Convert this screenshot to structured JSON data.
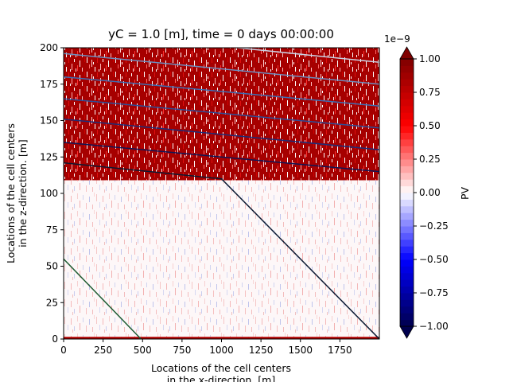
{
  "chart_data": {
    "type": "heatmap",
    "title": "yC = 1.0 [m], time = 0 days 00:00:00",
    "xlabel_lines": [
      "Locations of the cell centers",
      "in the x-direction. [m]"
    ],
    "ylabel_lines": [
      "Locations of the cell centers",
      "in the z-direction. [m]"
    ],
    "xlim": [
      0,
      2000
    ],
    "ylim": [
      0,
      200
    ],
    "xticks": [
      0,
      250,
      500,
      750,
      1000,
      1250,
      1500,
      1750
    ],
    "yticks": [
      0,
      25,
      50,
      75,
      100,
      125,
      150,
      175,
      200
    ],
    "colorbar": {
      "label": "PV",
      "exponent_label": "1e−9",
      "min": -1.0,
      "max": 1.0,
      "ticks": [
        -1.0,
        -0.75,
        -0.5,
        -0.25,
        0.0,
        0.25,
        0.5,
        0.75,
        1.0
      ],
      "tick_labels": [
        "−1.00",
        "−0.75",
        "−0.50",
        "−0.25",
        "0.00",
        "0.25",
        "0.50",
        "0.75",
        "1.00"
      ],
      "colormap": "seismic",
      "extend": "both"
    },
    "field_regions": [
      {
        "z_range": [
          109,
          200
        ],
        "level": "high",
        "value": 0.85,
        "color": "#a80000"
      },
      {
        "z_range": [
          0,
          109
        ],
        "level": "near-zero",
        "value": 0.0,
        "color": "#ffffff"
      }
    ],
    "contours": [
      {
        "color": "#1f5c33",
        "points": [
          [
            0,
            55
          ],
          [
            490,
            0
          ]
        ]
      },
      {
        "color": "#0c1a33",
        "points": [
          [
            0,
            121
          ],
          [
            1000,
            110
          ],
          [
            2000,
            0
          ]
        ]
      },
      {
        "color": "#0e1758",
        "points": [
          [
            0,
            135
          ],
          [
            2000,
            115
          ]
        ]
      },
      {
        "color": "#1b2e7a",
        "points": [
          [
            0,
            151
          ],
          [
            2000,
            130
          ]
        ]
      },
      {
        "color": "#2a4f9a",
        "points": [
          [
            0,
            165
          ],
          [
            2000,
            145
          ]
        ]
      },
      {
        "color": "#3b6fb5",
        "points": [
          [
            0,
            180
          ],
          [
            2000,
            160
          ]
        ]
      },
      {
        "color": "#6b8fc0",
        "points": [
          [
            0,
            196
          ],
          [
            2000,
            175
          ]
        ]
      },
      {
        "color": "#c9d2e4",
        "points": [
          [
            1100,
            200
          ],
          [
            2000,
            190
          ]
        ]
      }
    ]
  }
}
